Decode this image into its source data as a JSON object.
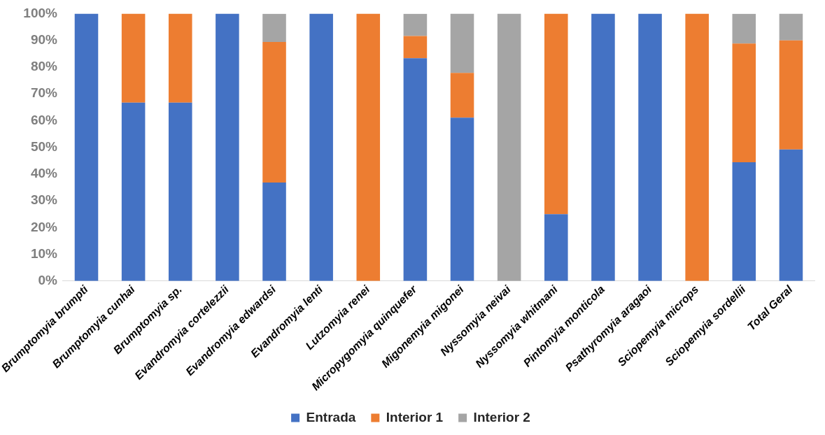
{
  "chart_data": {
    "type": "bar",
    "stacked": true,
    "categories": [
      "Brumptomyia brumpti",
      "Brumptomyia cunhai",
      "Brumptomyia sp.",
      "Evandromyia cortelezzii",
      "Evandromyia edwardsi",
      "Evandromyia lenti",
      "Lutzomyia renei",
      "Micropygomyia quinquefer",
      "Migonemyia migonei",
      "Nyssomyia neivai",
      "Nyssomyia whitmani",
      "Pintomyia monticola",
      "Psathyromyia aragaoi",
      "Sciopemyia microps",
      "Sciopemyia sordellii",
      "Total Geral"
    ],
    "series": [
      {
        "name": "Entrada",
        "color": "#4472c4",
        "values": [
          100,
          66.7,
          66.7,
          100,
          36.8,
          100,
          0,
          83.3,
          61.1,
          0,
          25,
          100,
          100,
          0,
          44.4,
          49.2
        ]
      },
      {
        "name": "Interior 1",
        "color": "#ed7d31",
        "values": [
          0,
          33.3,
          33.3,
          0,
          52.6,
          0,
          100,
          8.3,
          16.7,
          0,
          75,
          0,
          0,
          100,
          44.4,
          40.8
        ]
      },
      {
        "name": "Interior 2",
        "color": "#a5a5a5",
        "values": [
          0,
          0,
          0,
          0,
          10.5,
          0,
          0,
          8.3,
          22.2,
          100,
          0,
          0,
          0,
          0,
          11.1,
          10.0
        ]
      }
    ],
    "ylim": [
      0,
      100
    ],
    "yticks": [
      {
        "value": 0,
        "label": "0%"
      },
      {
        "value": 10,
        "label": "10%"
      },
      {
        "value": 20,
        "label": "20%"
      },
      {
        "value": 30,
        "label": "30%"
      },
      {
        "value": 40,
        "label": "40%"
      },
      {
        "value": 50,
        "label": "50%"
      },
      {
        "value": 60,
        "label": "60%"
      },
      {
        "value": 70,
        "label": "70%"
      },
      {
        "value": 80,
        "label": "80%"
      },
      {
        "value": 90,
        "label": "90%"
      },
      {
        "value": 100,
        "label": "100%"
      }
    ],
    "legend": "bottom"
  }
}
